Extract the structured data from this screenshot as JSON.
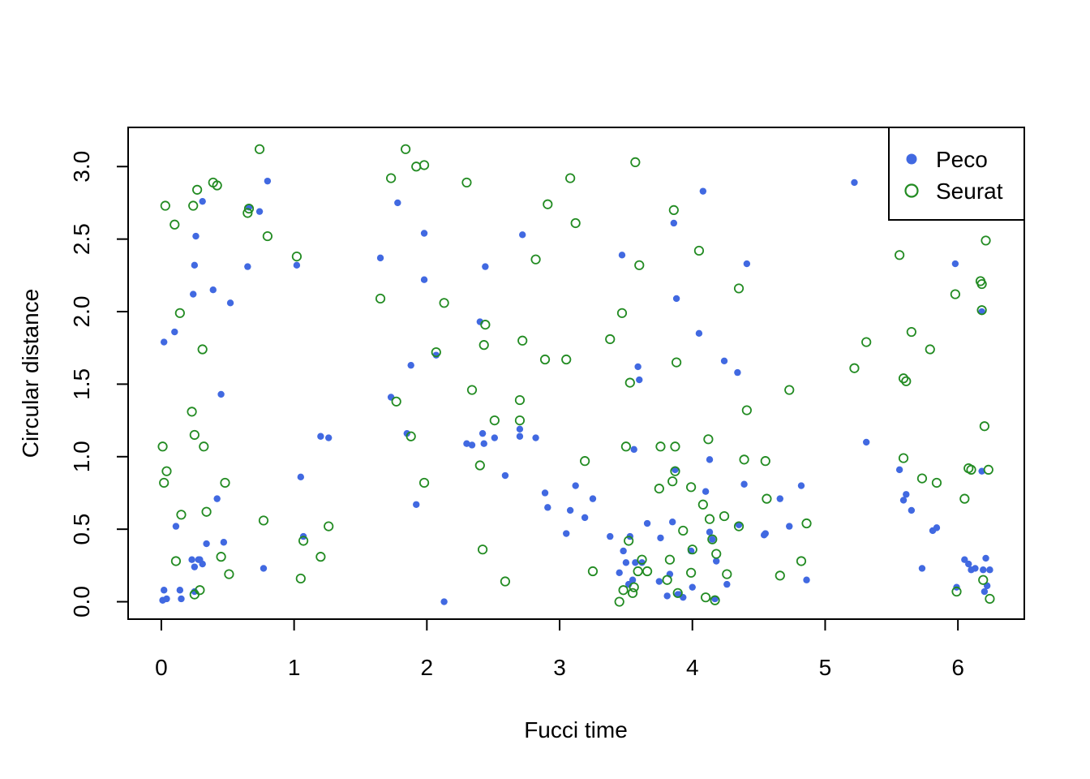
{
  "chart_data": {
    "type": "scatter",
    "title": "",
    "xlabel": "Fucci time",
    "ylabel": "Circular distance",
    "xlim": [
      -0.25,
      6.5
    ],
    "ylim": [
      -0.12,
      3.27
    ],
    "x_ticks": [
      0,
      1,
      2,
      3,
      4,
      5,
      6
    ],
    "y_ticks": [
      0.0,
      0.5,
      1.0,
      1.5,
      2.0,
      2.5,
      3.0
    ],
    "x_tick_labels": [
      "0",
      "1",
      "2",
      "3",
      "4",
      "5",
      "6"
    ],
    "y_tick_labels": [
      "0.0",
      "0.5",
      "1.0",
      "1.5",
      "2.0",
      "2.5",
      "3.0"
    ],
    "grid": false,
    "legend_position": "top-right",
    "legend": [
      {
        "label": "Peco",
        "color": "#4169E1",
        "marker": "filled-circle"
      },
      {
        "label": "Seurat",
        "color": "#228B22",
        "marker": "open-circle"
      }
    ],
    "series": [
      {
        "name": "Peco",
        "color": "#4169E1",
        "marker": "filled-circle",
        "points": [
          [
            0.01,
            0.01
          ],
          [
            0.02,
            0.08
          ],
          [
            0.04,
            0.02
          ],
          [
            0.02,
            1.79
          ],
          [
            0.1,
            1.86
          ],
          [
            0.11,
            0.52
          ],
          [
            0.14,
            0.08
          ],
          [
            0.15,
            0.02
          ],
          [
            0.23,
            0.29
          ],
          [
            0.24,
            2.12
          ],
          [
            0.25,
            2.32
          ],
          [
            0.26,
            2.52
          ],
          [
            0.25,
            0.24
          ],
          [
            0.25,
            0.07
          ],
          [
            0.28,
            0.29
          ],
          [
            0.29,
            0.29
          ],
          [
            0.31,
            2.76
          ],
          [
            0.31,
            0.26
          ],
          [
            0.34,
            0.4
          ],
          [
            0.39,
            2.15
          ],
          [
            0.42,
            0.71
          ],
          [
            0.45,
            1.43
          ],
          [
            0.47,
            0.41
          ],
          [
            0.52,
            2.06
          ],
          [
            0.65,
            2.31
          ],
          [
            0.66,
            2.72
          ],
          [
            0.74,
            2.69
          ],
          [
            0.77,
            0.23
          ],
          [
            0.8,
            2.9
          ],
          [
            1.02,
            2.32
          ],
          [
            1.05,
            0.86
          ],
          [
            1.07,
            0.45
          ],
          [
            1.2,
            1.14
          ],
          [
            1.26,
            1.13
          ],
          [
            1.65,
            2.37
          ],
          [
            1.73,
            1.41
          ],
          [
            1.78,
            2.75
          ],
          [
            1.85,
            1.16
          ],
          [
            1.88,
            1.63
          ],
          [
            1.92,
            0.67
          ],
          [
            1.98,
            2.54
          ],
          [
            1.98,
            2.22
          ],
          [
            2.07,
            1.7
          ],
          [
            2.13,
            0.0
          ],
          [
            2.3,
            1.09
          ],
          [
            2.34,
            1.08
          ],
          [
            2.4,
            1.93
          ],
          [
            2.42,
            1.16
          ],
          [
            2.43,
            1.09
          ],
          [
            2.44,
            2.31
          ],
          [
            2.51,
            1.13
          ],
          [
            2.59,
            0.87
          ],
          [
            2.7,
            1.14
          ],
          [
            2.7,
            1.19
          ],
          [
            2.72,
            2.53
          ],
          [
            2.82,
            1.13
          ],
          [
            2.89,
            0.75
          ],
          [
            2.91,
            0.65
          ],
          [
            3.05,
            0.47
          ],
          [
            3.08,
            0.63
          ],
          [
            3.12,
            0.8
          ],
          [
            3.19,
            0.58
          ],
          [
            3.25,
            0.71
          ],
          [
            3.38,
            0.45
          ],
          [
            3.45,
            0.2
          ],
          [
            3.47,
            2.39
          ],
          [
            3.48,
            0.35
          ],
          [
            3.5,
            0.27
          ],
          [
            3.52,
            0.12
          ],
          [
            3.53,
            0.45
          ],
          [
            3.55,
            0.15
          ],
          [
            3.56,
            1.05
          ],
          [
            3.57,
            0.27
          ],
          [
            3.59,
            1.62
          ],
          [
            3.6,
            1.53
          ],
          [
            3.62,
            0.27
          ],
          [
            3.66,
            0.54
          ],
          [
            3.75,
            0.14
          ],
          [
            3.76,
            0.44
          ],
          [
            3.81,
            0.04
          ],
          [
            3.83,
            0.19
          ],
          [
            3.85,
            0.55
          ],
          [
            3.86,
            2.61
          ],
          [
            3.87,
            0.91
          ],
          [
            3.88,
            2.09
          ],
          [
            3.89,
            0.05
          ],
          [
            3.9,
            0.05
          ],
          [
            3.93,
            0.03
          ],
          [
            3.99,
            0.35
          ],
          [
            4.0,
            0.1
          ],
          [
            4.05,
            1.85
          ],
          [
            4.08,
            2.83
          ],
          [
            4.1,
            0.76
          ],
          [
            4.13,
            0.98
          ],
          [
            4.13,
            0.48
          ],
          [
            4.15,
            0.43
          ],
          [
            4.17,
            0.02
          ],
          [
            4.18,
            0.28
          ],
          [
            4.24,
            1.66
          ],
          [
            4.26,
            0.12
          ],
          [
            4.34,
            1.58
          ],
          [
            4.35,
            0.53
          ],
          [
            4.39,
            0.81
          ],
          [
            4.41,
            2.33
          ],
          [
            4.54,
            0.46
          ],
          [
            4.55,
            0.47
          ],
          [
            4.66,
            0.71
          ],
          [
            4.73,
            0.52
          ],
          [
            4.82,
            0.8
          ],
          [
            4.86,
            0.15
          ],
          [
            5.22,
            2.89
          ],
          [
            5.31,
            1.1
          ],
          [
            5.56,
            0.91
          ],
          [
            5.59,
            0.7
          ],
          [
            5.61,
            0.74
          ],
          [
            5.65,
            0.63
          ],
          [
            5.73,
            0.23
          ],
          [
            5.81,
            0.49
          ],
          [
            5.84,
            0.51
          ],
          [
            5.98,
            2.33
          ],
          [
            5.99,
            0.1
          ],
          [
            6.05,
            0.29
          ],
          [
            6.08,
            0.26
          ],
          [
            6.1,
            0.22
          ],
          [
            6.13,
            0.23
          ],
          [
            6.18,
            2.0
          ],
          [
            6.18,
            0.9
          ],
          [
            6.19,
            0.22
          ],
          [
            6.2,
            0.07
          ],
          [
            6.21,
            0.3
          ],
          [
            6.22,
            0.11
          ],
          [
            6.24,
            0.22
          ]
        ]
      },
      {
        "name": "Seurat",
        "color": "#228B22",
        "marker": "open-circle",
        "points": [
          [
            0.01,
            1.07
          ],
          [
            0.02,
            0.82
          ],
          [
            0.03,
            2.73
          ],
          [
            0.04,
            0.9
          ],
          [
            0.1,
            2.6
          ],
          [
            0.11,
            0.28
          ],
          [
            0.14,
            1.99
          ],
          [
            0.15,
            0.6
          ],
          [
            0.23,
            1.31
          ],
          [
            0.24,
            2.73
          ],
          [
            0.25,
            1.15
          ],
          [
            0.25,
            0.05
          ],
          [
            0.27,
            2.84
          ],
          [
            0.29,
            0.08
          ],
          [
            0.31,
            1.74
          ],
          [
            0.32,
            1.07
          ],
          [
            0.34,
            0.62
          ],
          [
            0.39,
            2.89
          ],
          [
            0.42,
            2.87
          ],
          [
            0.45,
            0.31
          ],
          [
            0.48,
            0.82
          ],
          [
            0.51,
            0.19
          ],
          [
            0.65,
            2.68
          ],
          [
            0.66,
            2.71
          ],
          [
            0.74,
            3.12
          ],
          [
            0.77,
            0.56
          ],
          [
            0.8,
            2.52
          ],
          [
            1.02,
            2.38
          ],
          [
            1.05,
            0.16
          ],
          [
            1.07,
            0.42
          ],
          [
            1.2,
            0.31
          ],
          [
            1.26,
            0.52
          ],
          [
            1.65,
            2.09
          ],
          [
            1.73,
            2.92
          ],
          [
            1.77,
            1.38
          ],
          [
            1.84,
            3.12
          ],
          [
            1.88,
            1.14
          ],
          [
            1.92,
            3.0
          ],
          [
            1.98,
            3.01
          ],
          [
            1.98,
            0.82
          ],
          [
            2.07,
            1.72
          ],
          [
            2.13,
            2.06
          ],
          [
            2.3,
            2.89
          ],
          [
            2.34,
            1.46
          ],
          [
            2.4,
            0.94
          ],
          [
            2.42,
            0.36
          ],
          [
            2.43,
            1.77
          ],
          [
            2.44,
            1.91
          ],
          [
            2.51,
            1.25
          ],
          [
            2.59,
            0.14
          ],
          [
            2.7,
            1.39
          ],
          [
            2.7,
            1.25
          ],
          [
            2.72,
            1.8
          ],
          [
            2.82,
            2.36
          ],
          [
            2.89,
            1.67
          ],
          [
            2.91,
            2.74
          ],
          [
            3.05,
            1.67
          ],
          [
            3.08,
            2.92
          ],
          [
            3.12,
            2.61
          ],
          [
            3.19,
            0.97
          ],
          [
            3.25,
            0.21
          ],
          [
            3.38,
            1.81
          ],
          [
            3.45,
            0.0
          ],
          [
            3.47,
            1.99
          ],
          [
            3.48,
            0.08
          ],
          [
            3.5,
            1.07
          ],
          [
            3.52,
            0.42
          ],
          [
            3.53,
            1.51
          ],
          [
            3.55,
            0.06
          ],
          [
            3.56,
            0.1
          ],
          [
            3.57,
            3.03
          ],
          [
            3.59,
            0.21
          ],
          [
            3.6,
            2.32
          ],
          [
            3.62,
            0.29
          ],
          [
            3.66,
            0.21
          ],
          [
            3.75,
            0.78
          ],
          [
            3.76,
            1.07
          ],
          [
            3.81,
            0.15
          ],
          [
            3.83,
            0.29
          ],
          [
            3.85,
            0.83
          ],
          [
            3.86,
            2.7
          ],
          [
            3.87,
            1.07
          ],
          [
            3.88,
            1.65
          ],
          [
            3.87,
            0.9
          ],
          [
            3.89,
            0.06
          ],
          [
            3.93,
            0.49
          ],
          [
            3.99,
            0.79
          ],
          [
            3.99,
            0.2
          ],
          [
            4.0,
            0.36
          ],
          [
            4.05,
            2.42
          ],
          [
            4.08,
            0.67
          ],
          [
            4.1,
            0.03
          ],
          [
            4.12,
            1.12
          ],
          [
            4.13,
            0.57
          ],
          [
            4.15,
            0.43
          ],
          [
            4.17,
            0.01
          ],
          [
            4.18,
            0.33
          ],
          [
            4.24,
            0.59
          ],
          [
            4.26,
            0.19
          ],
          [
            4.35,
            2.16
          ],
          [
            4.35,
            0.52
          ],
          [
            4.39,
            0.98
          ],
          [
            4.41,
            1.32
          ],
          [
            4.55,
            0.97
          ],
          [
            4.56,
            0.71
          ],
          [
            4.66,
            0.18
          ],
          [
            4.73,
            1.46
          ],
          [
            4.82,
            0.28
          ],
          [
            4.86,
            0.54
          ],
          [
            5.22,
            1.61
          ],
          [
            5.31,
            1.79
          ],
          [
            5.56,
            2.39
          ],
          [
            5.59,
            1.54
          ],
          [
            5.59,
            0.99
          ],
          [
            5.61,
            1.52
          ],
          [
            5.65,
            1.86
          ],
          [
            5.73,
            0.85
          ],
          [
            5.79,
            1.74
          ],
          [
            5.84,
            0.82
          ],
          [
            5.98,
            2.12
          ],
          [
            5.99,
            0.07
          ],
          [
            6.05,
            0.71
          ],
          [
            6.08,
            0.92
          ],
          [
            6.1,
            0.91
          ],
          [
            6.17,
            2.21
          ],
          [
            6.18,
            2.19
          ],
          [
            6.18,
            2.01
          ],
          [
            6.19,
            0.15
          ],
          [
            6.2,
            1.21
          ],
          [
            6.21,
            2.49
          ],
          [
            6.23,
            0.91
          ],
          [
            6.24,
            0.02
          ]
        ]
      }
    ]
  }
}
